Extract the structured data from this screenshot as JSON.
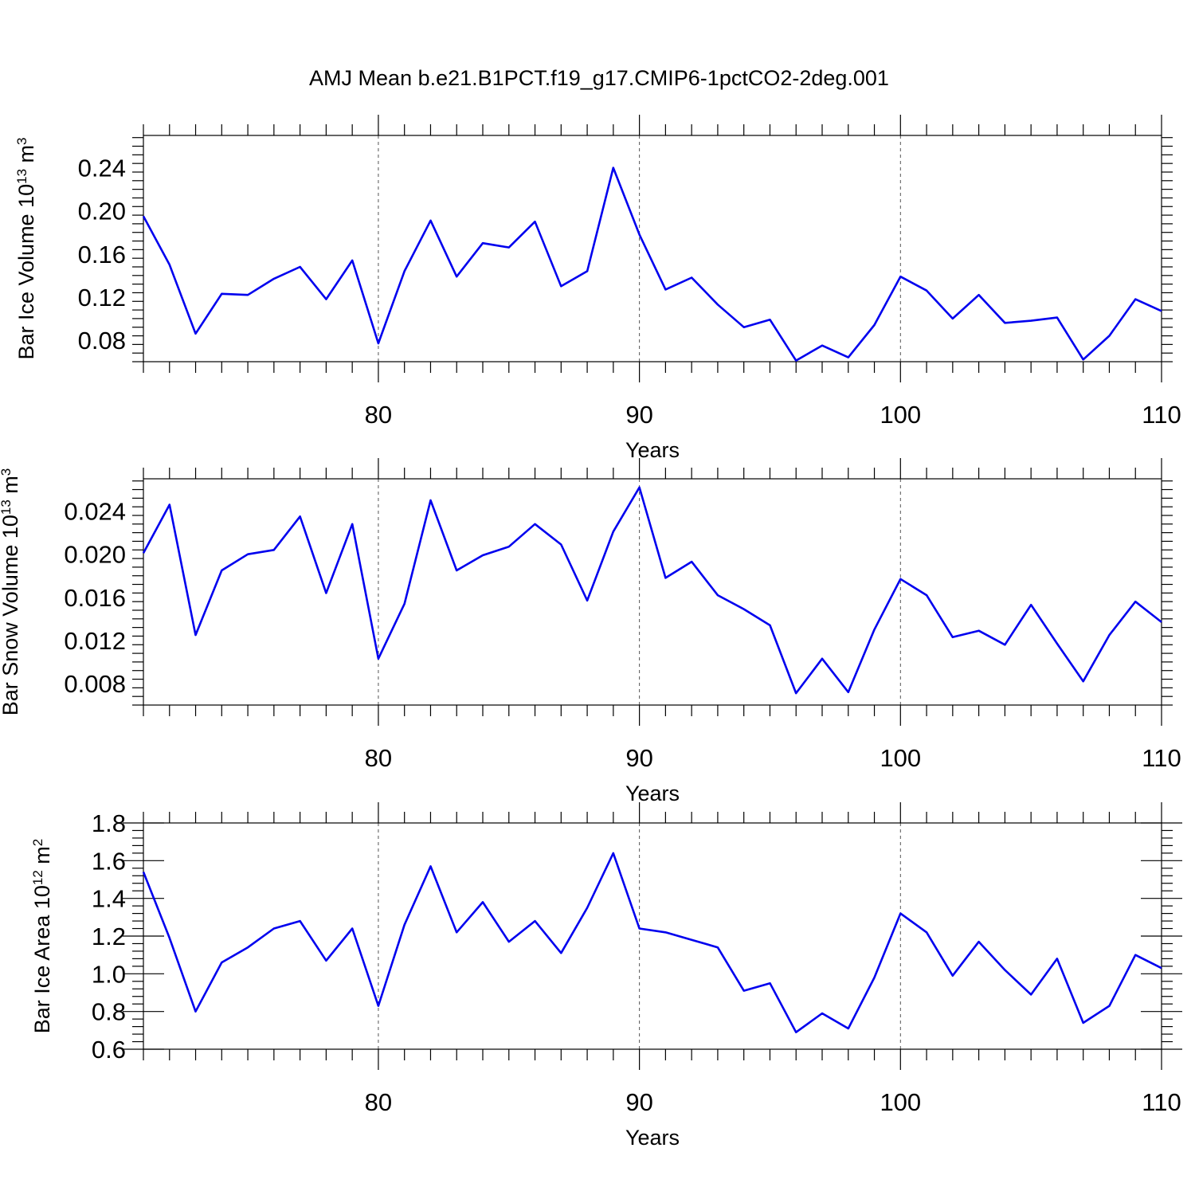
{
  "figure": {
    "title": "AMJ Mean b.e21.B1PCT.f19_g17.CMIP6-1pctCO2-2deg.001"
  },
  "chart_data": [
    {
      "type": "line",
      "title": "",
      "xlabel": "Years",
      "ylabel": {
        "text": "Bar Ice Volume 10",
        "sup": "13",
        "unit": " m",
        "unit_sup": "3"
      },
      "xlim": [
        71,
        110
      ],
      "ylim": [
        0.06,
        0.27
      ],
      "xticks": [
        80,
        90,
        100,
        110
      ],
      "yticks": [
        "0.08",
        "0.12",
        "0.16",
        "0.20",
        "0.24"
      ],
      "grid": "dashed vertical at major x ticks",
      "series": [
        {
          "color": "#0000ee",
          "x": [
            71,
            72,
            73,
            74,
            75,
            76,
            77,
            78,
            79,
            80,
            81,
            82,
            83,
            84,
            85,
            86,
            87,
            88,
            89,
            90,
            91,
            92,
            93,
            94,
            95,
            96,
            97,
            98,
            99,
            100,
            101,
            102,
            103,
            104,
            105,
            106,
            107,
            108,
            109,
            110
          ],
          "y": [
            0.195,
            0.15,
            0.086,
            0.123,
            0.122,
            0.137,
            0.148,
            0.118,
            0.154,
            0.077,
            0.144,
            0.191,
            0.139,
            0.17,
            0.166,
            0.19,
            0.13,
            0.144,
            0.24,
            0.178,
            0.127,
            0.138,
            0.113,
            0.092,
            0.099,
            0.061,
            0.075,
            0.064,
            0.094,
            0.139,
            0.126,
            0.1,
            0.122,
            0.096,
            0.098,
            0.101,
            0.062,
            0.084,
            0.118,
            0.107
          ]
        }
      ]
    },
    {
      "type": "line",
      "title": "",
      "xlabel": "Years",
      "ylabel": {
        "text": "Bar Snow Volume 10",
        "sup": "13",
        "unit": " m",
        "unit_sup": "3"
      },
      "xlim": [
        71,
        110
      ],
      "ylim": [
        0.006,
        0.027
      ],
      "xticks": [
        80,
        90,
        100,
        110
      ],
      "yticks": [
        "0.008",
        "0.012",
        "0.016",
        "0.020",
        "0.024"
      ],
      "grid": "dashed vertical at major x ticks",
      "series": [
        {
          "color": "#0000ee",
          "x": [
            71,
            72,
            73,
            74,
            75,
            76,
            77,
            78,
            79,
            80,
            81,
            82,
            83,
            84,
            85,
            86,
            87,
            88,
            89,
            90,
            91,
            92,
            93,
            94,
            95,
            96,
            97,
            98,
            99,
            100,
            101,
            102,
            103,
            104,
            105,
            106,
            107,
            108,
            109,
            110
          ],
          "y": [
            0.0201,
            0.0246,
            0.0125,
            0.0185,
            0.02,
            0.0204,
            0.0235,
            0.0164,
            0.0228,
            0.0103,
            0.0154,
            0.025,
            0.0185,
            0.0199,
            0.0207,
            0.0228,
            0.0209,
            0.0157,
            0.0221,
            0.0262,
            0.0178,
            0.0193,
            0.0162,
            0.0149,
            0.0134,
            0.0071,
            0.0103,
            0.0072,
            0.013,
            0.0177,
            0.0162,
            0.0123,
            0.0129,
            0.0116,
            0.0153,
            0.0117,
            0.0082,
            0.0125,
            0.0156,
            0.0137
          ]
        }
      ]
    },
    {
      "type": "line",
      "title": "",
      "xlabel": "Years",
      "ylabel": {
        "text": "Bar Ice Area 10",
        "sup": "12",
        "unit": " m",
        "unit_sup": "2"
      },
      "xlim": [
        71,
        110
      ],
      "ylim": [
        0.6,
        1.8
      ],
      "xticks": [
        80,
        90,
        100,
        110
      ],
      "yticks": [
        "0.6",
        "0.8",
        "1.0",
        "1.2",
        "1.4",
        "1.6",
        "1.8"
      ],
      "grid": "dashed vertical at major x ticks",
      "series": [
        {
          "color": "#0000ee",
          "x": [
            71,
            72,
            73,
            74,
            75,
            76,
            77,
            78,
            79,
            80,
            81,
            82,
            83,
            84,
            85,
            86,
            87,
            88,
            89,
            90,
            91,
            92,
            93,
            94,
            95,
            96,
            97,
            98,
            99,
            100,
            101,
            102,
            103,
            104,
            105,
            106,
            107,
            108,
            109,
            110
          ],
          "y": [
            1.54,
            1.19,
            0.8,
            1.06,
            1.14,
            1.24,
            1.28,
            1.07,
            1.24,
            0.83,
            1.26,
            1.57,
            1.22,
            1.38,
            1.17,
            1.28,
            1.11,
            1.35,
            1.64,
            1.24,
            1.22,
            1.18,
            1.14,
            0.91,
            0.95,
            0.69,
            0.79,
            0.71,
            0.98,
            1.32,
            1.22,
            0.99,
            1.17,
            1.02,
            0.89,
            1.08,
            0.74,
            0.83,
            1.1,
            1.03
          ]
        }
      ]
    }
  ]
}
